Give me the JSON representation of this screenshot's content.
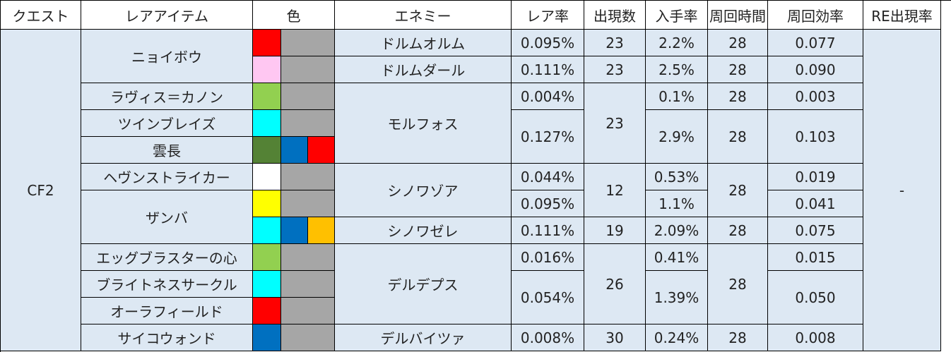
{
  "headers": [
    "クエスト",
    "レアアイテム",
    "色",
    "エネミー",
    "レア率",
    "出現数",
    "入手率",
    "周回時間",
    "周回効率",
    "RE出現率"
  ],
  "quest": "CF2",
  "re_rate": "-",
  "items": [
    "ニョイボウ",
    "ラヴィス＝カノン",
    "ツインブレイズ",
    "雲長",
    "ヘヴンストライカー",
    "ザンバ",
    "エッグブラスターの心",
    "ブライトネスサークル",
    "オーラフィールド",
    "サイコウォンド"
  ],
  "enemies": [
    "ドルムオルム",
    "ドルムダール",
    "モルフォス",
    "シノワゾア",
    "シノワゼレ",
    "デルデプス",
    "デルバイツァ"
  ],
  "rare_rates": [
    "0.095%",
    "0.111%",
    "0.004%",
    "0.127%",
    "0.044%",
    "0.095%",
    "0.111%",
    "0.016%",
    "0.054%",
    "0.008%"
  ],
  "spawn_counts": [
    "23",
    "23",
    "23",
    "12",
    "19",
    "26",
    "30"
  ],
  "drop_rates": [
    "2.2%",
    "2.5%",
    "0.1%",
    "2.9%",
    "0.53%",
    "1.1%",
    "2.09%",
    "0.41%",
    "1.39%",
    "0.24%"
  ],
  "loop_times": [
    "28",
    "28",
    "28",
    "28",
    "28",
    "28",
    "28",
    "28"
  ],
  "efficiencies": [
    "0.077",
    "0.090",
    "0.003",
    "0.103",
    "0.019",
    "0.041",
    "0.075",
    "0.015",
    "0.050",
    "0.008"
  ],
  "colors": {
    "red": "#ff0000",
    "pink": "#ffc7f2",
    "light_green": "#92d050",
    "cyan": "#00ffff",
    "dark_green": "#548235",
    "blue": "#0070c0",
    "white": "#ffffff",
    "yellow": "#ffff00",
    "orange": "#ffc000",
    "gray": "#a6a6a6"
  }
}
